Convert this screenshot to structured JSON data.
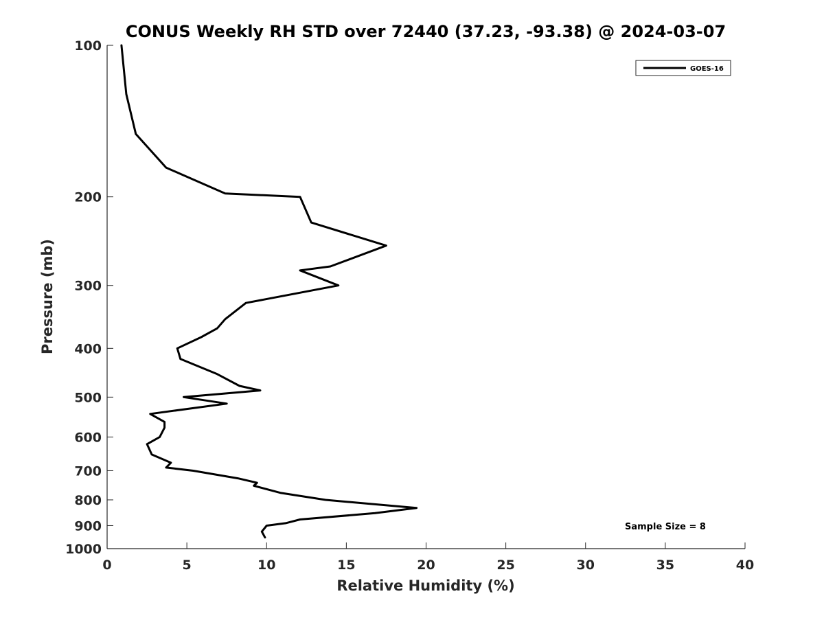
{
  "chart_data": {
    "type": "line",
    "title": "CONUS Weekly RH STD over 72440 (37.23, -93.38) @ 2024-03-07",
    "xlabel": "Relative Humidity (%)",
    "ylabel": "Pressure (mb)",
    "xlim": [
      0,
      40
    ],
    "ylim": [
      100,
      1000
    ],
    "yscale": "log",
    "y_reversed": true,
    "xticks": [
      "0",
      "5",
      "10",
      "15",
      "20",
      "25",
      "30",
      "35",
      "40"
    ],
    "xtick_values": [
      0,
      5,
      10,
      15,
      20,
      25,
      30,
      35,
      40
    ],
    "yticks": [
      "100",
      "200",
      "300",
      "400",
      "500",
      "600",
      "700",
      "800",
      "900",
      "1000"
    ],
    "ytick_values": [
      100,
      200,
      300,
      400,
      500,
      600,
      700,
      800,
      900,
      1000
    ],
    "grid": false,
    "legend_position": "top-right",
    "series": [
      {
        "name": "GOES-16",
        "color": "#000000",
        "points": [
          [
            0.9,
            100
          ],
          [
            1.2,
            125
          ],
          [
            1.8,
            150
          ],
          [
            3.7,
            175
          ],
          [
            7.4,
            197
          ],
          [
            12.1,
            200
          ],
          [
            12.8,
            225
          ],
          [
            17.5,
            250
          ],
          [
            14.0,
            275
          ],
          [
            12.1,
            280
          ],
          [
            14.5,
            300
          ],
          [
            8.7,
            325
          ],
          [
            7.4,
            350
          ],
          [
            6.9,
            365
          ],
          [
            5.9,
            380
          ],
          [
            4.4,
            400
          ],
          [
            4.6,
            420
          ],
          [
            6.9,
            450
          ],
          [
            8.3,
            475
          ],
          [
            9.6,
            485
          ],
          [
            4.8,
            500
          ],
          [
            7.5,
            515
          ],
          [
            2.7,
            540
          ],
          [
            3.6,
            560
          ],
          [
            3.6,
            575
          ],
          [
            3.3,
            600
          ],
          [
            2.5,
            620
          ],
          [
            2.8,
            650
          ],
          [
            4.0,
            675
          ],
          [
            3.7,
            690
          ],
          [
            5.4,
            700
          ],
          [
            8.2,
            725
          ],
          [
            9.4,
            740
          ],
          [
            9.2,
            750
          ],
          [
            10.9,
            775
          ],
          [
            13.7,
            800
          ],
          [
            19.4,
            830
          ],
          [
            16.8,
            850
          ],
          [
            12.1,
            875
          ],
          [
            11.2,
            890
          ],
          [
            10.0,
            900
          ],
          [
            9.7,
            925
          ],
          [
            9.9,
            950
          ]
        ]
      }
    ],
    "annotations": [
      {
        "text": "Sample Size = 8"
      }
    ]
  }
}
